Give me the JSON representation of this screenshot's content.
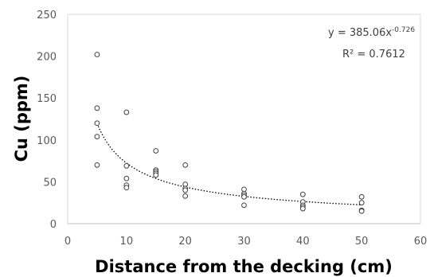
{
  "chart_data": {
    "type": "scatter",
    "xlabel": "Distance from the decking (cm)",
    "ylabel": "Cu (ppm)",
    "xlim": [
      0,
      60
    ],
    "ylim": [
      0,
      250
    ],
    "x_ticks": [
      "0",
      "10",
      "20",
      "30",
      "40",
      "50",
      "60"
    ],
    "y_ticks": [
      "0",
      "50",
      "100",
      "150",
      "200",
      "250"
    ],
    "grid": false,
    "legend": "none",
    "series": [
      {
        "marker": "open-circle",
        "color": "#404040",
        "points": [
          [
            5,
            202
          ],
          [
            5,
            138
          ],
          [
            5,
            120
          ],
          [
            5,
            104
          ],
          [
            5,
            70
          ],
          [
            10,
            133
          ],
          [
            10,
            69
          ],
          [
            10,
            54
          ],
          [
            10,
            46
          ],
          [
            10,
            43
          ],
          [
            15,
            87
          ],
          [
            15,
            64
          ],
          [
            15,
            62
          ],
          [
            15,
            60
          ],
          [
            15,
            58
          ],
          [
            20,
            70
          ],
          [
            20,
            47
          ],
          [
            20,
            42
          ],
          [
            20,
            40
          ],
          [
            20,
            33
          ],
          [
            30,
            41
          ],
          [
            30,
            36
          ],
          [
            30,
            34
          ],
          [
            30,
            32
          ],
          [
            30,
            22
          ],
          [
            40,
            35
          ],
          [
            40,
            26
          ],
          [
            40,
            22
          ],
          [
            40,
            20
          ],
          [
            40,
            18
          ],
          [
            50,
            32
          ],
          [
            50,
            25
          ],
          [
            50,
            16
          ],
          [
            50,
            15
          ]
        ]
      }
    ],
    "trendline": {
      "type": "power",
      "coefficient": 385.06,
      "exponent": -0.726,
      "x_range": [
        5,
        50
      ],
      "style": "dotted",
      "equation_prefix": "y = 385.06x",
      "equation_exponent": "-0.726",
      "r2_text": "R² = 0.7612",
      "placement": "top-right"
    }
  }
}
